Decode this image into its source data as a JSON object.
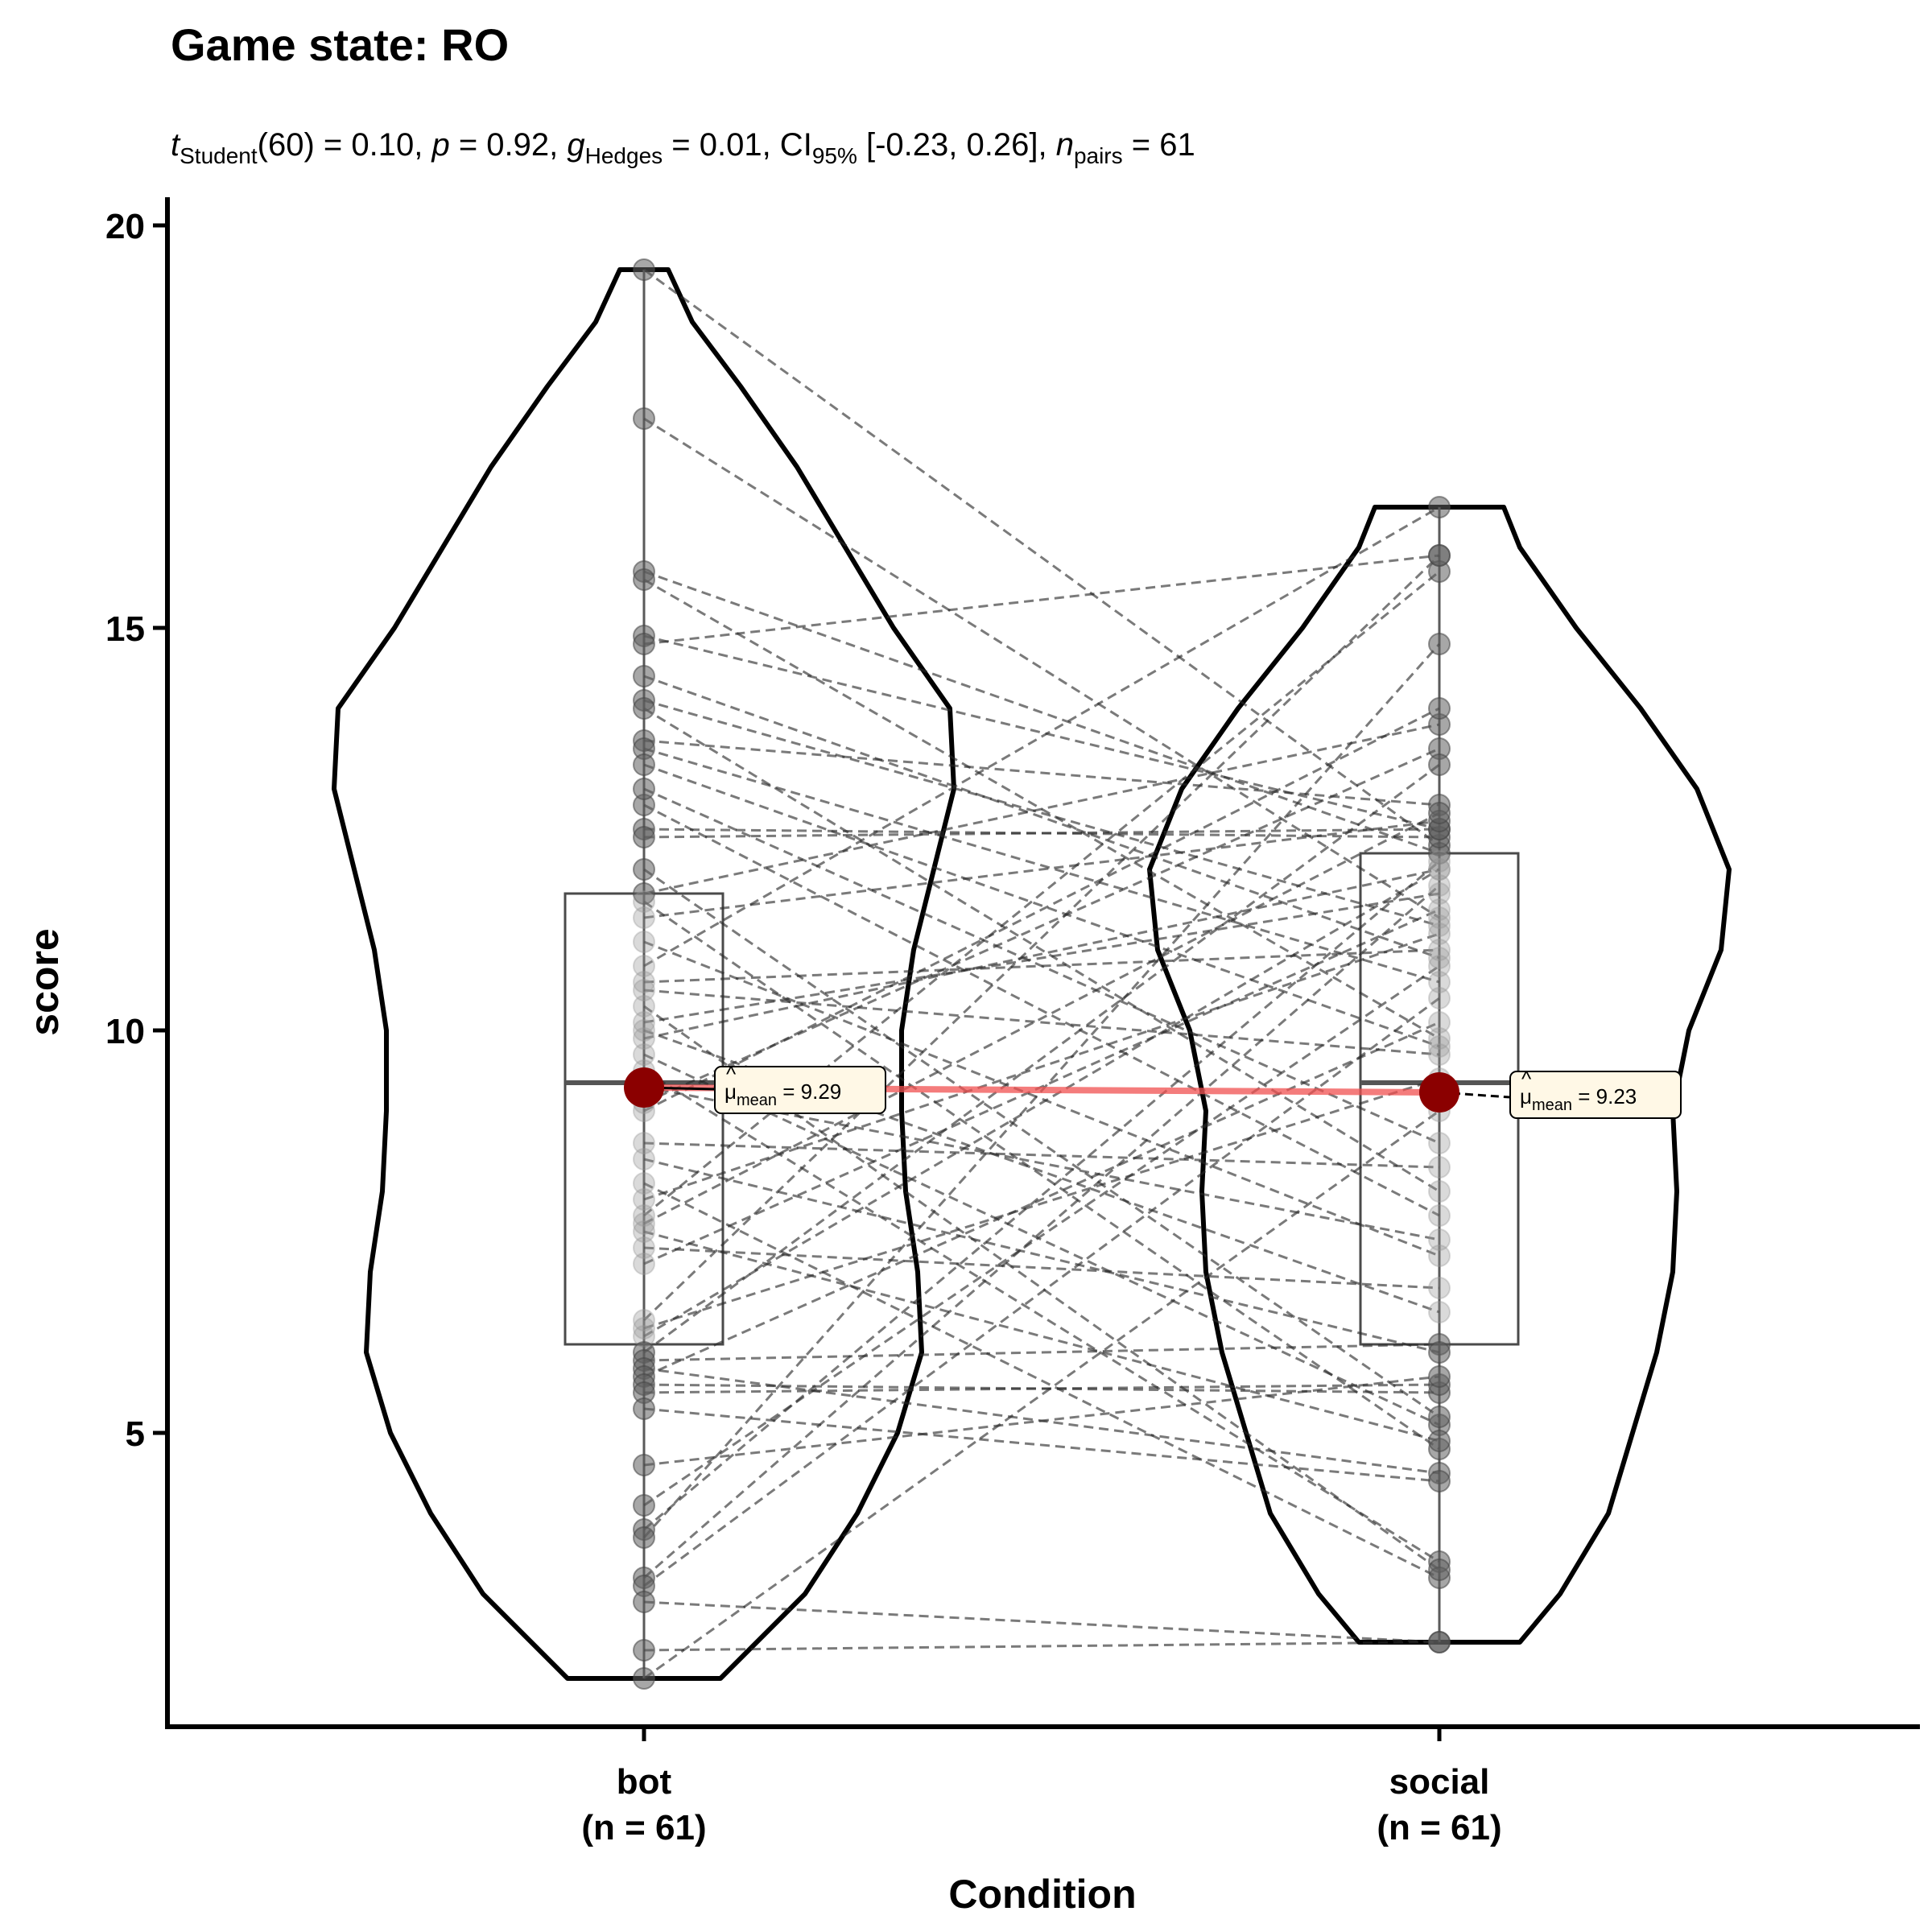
{
  "chart_data": {
    "type": "violin-paired",
    "title": "Game state: RO",
    "subtitle": {
      "t_sym": "t",
      "t_sub": "Student",
      "t_rest": "(60) = 0.10, ",
      "p_sym": "p",
      "p_rest": " = 0.92, ",
      "g_sym": "g",
      "g_hat": "^",
      "g_sub": "Hedges",
      "g_rest": " = 0.01, CI",
      "ci_sub": "95%",
      "ci_rest": " [-0.23, 0.26], ",
      "n_sym": "n",
      "n_sub": "pairs",
      "n_rest": " = 61"
    },
    "xlabel": "Condition",
    "ylabel": "score",
    "ylim": [
      1.35,
      20.35
    ],
    "yticks": [
      "5",
      "10",
      "15",
      "20"
    ],
    "categories": [
      {
        "name": "bot",
        "n_label": "(n = 61)"
      },
      {
        "name": "social",
        "n_label": "(n = 61)"
      }
    ],
    "means": [
      {
        "mu": "μ",
        "hat": "^",
        "sub": "mean",
        "text": " = 9.29",
        "value": 9.29
      },
      {
        "mu": "μ",
        "hat": "^",
        "sub": "mean",
        "text": " = 9.23",
        "value": 9.23
      }
    ],
    "boxes": [
      {
        "q1": 6.1,
        "median": 9.35,
        "q3": 11.7,
        "min": 1.95,
        "max": 19.45
      },
      {
        "q1": 6.1,
        "median": 9.35,
        "q3": 12.2,
        "min": 2.4,
        "max": 16.5
      }
    ],
    "violins": [
      {
        "profile": [
          [
            1.95,
            0.095
          ],
          [
            2.5,
            0.15
          ],
          [
            3.0,
            0.2
          ],
          [
            4.0,
            0.265
          ],
          [
            5.0,
            0.315
          ],
          [
            6.0,
            0.345
          ],
          [
            7.0,
            0.34
          ],
          [
            8.0,
            0.325
          ],
          [
            9.0,
            0.32
          ],
          [
            10.0,
            0.32
          ],
          [
            11.0,
            0.335
          ],
          [
            12.0,
            0.36
          ],
          [
            13.0,
            0.385
          ],
          [
            14.0,
            0.38
          ],
          [
            15.0,
            0.31
          ],
          [
            16.0,
            0.25
          ],
          [
            17.0,
            0.19
          ],
          [
            18.0,
            0.12
          ],
          [
            18.8,
            0.06
          ],
          [
            19.45,
            0.03
          ]
        ]
      },
      {
        "profile": [
          [
            2.4,
            0.1
          ],
          [
            3.0,
            0.15
          ],
          [
            4.0,
            0.21
          ],
          [
            5.0,
            0.24
          ],
          [
            6.0,
            0.27
          ],
          [
            7.0,
            0.29
          ],
          [
            8.0,
            0.295
          ],
          [
            9.0,
            0.29
          ],
          [
            10.0,
            0.31
          ],
          [
            11.0,
            0.35
          ],
          [
            12.0,
            0.36
          ],
          [
            13.0,
            0.32
          ],
          [
            14.0,
            0.25
          ],
          [
            15.0,
            0.17
          ],
          [
            16.0,
            0.1
          ],
          [
            16.5,
            0.08
          ]
        ]
      }
    ],
    "pairs": [
      [
        19.45,
        12.3
      ],
      [
        17.6,
        11.4
      ],
      [
        15.7,
        12.2
      ],
      [
        15.6,
        9.9
      ],
      [
        14.9,
        12.5
      ],
      [
        14.8,
        15.9
      ],
      [
        14.4,
        10.9
      ],
      [
        14.1,
        11.3
      ],
      [
        14.0,
        8.0
      ],
      [
        13.6,
        12.8
      ],
      [
        13.5,
        10.6
      ],
      [
        13.3,
        9.8
      ],
      [
        12.8,
        7.7
      ],
      [
        12.5,
        12.4
      ],
      [
        12.4,
        12.5
      ],
      [
        11.7,
        13.8
      ],
      [
        11.6,
        4.8
      ],
      [
        11.4,
        12.6
      ],
      [
        11.1,
        7.2
      ],
      [
        10.8,
        16.5
      ],
      [
        10.6,
        11.0
      ],
      [
        10.5,
        9.7
      ],
      [
        10.1,
        11.7
      ],
      [
        9.9,
        12.0
      ],
      [
        9.7,
        5.1
      ],
      [
        9.5,
        3.4
      ],
      [
        9.3,
        7.4
      ],
      [
        9.1,
        13.5
      ],
      [
        8.6,
        8.3
      ],
      [
        8.1,
        3.2
      ],
      [
        7.7,
        15.7
      ],
      [
        7.6,
        12.7
      ],
      [
        7.5,
        4.9
      ],
      [
        7.3,
        6.8
      ],
      [
        7.1,
        11.5
      ],
      [
        6.4,
        15.9
      ],
      [
        6.2,
        12.0
      ],
      [
        6.0,
        13.3
      ],
      [
        5.9,
        6.1
      ],
      [
        5.8,
        4.5
      ],
      [
        5.7,
        10.1
      ],
      [
        5.6,
        5.5
      ],
      [
        5.5,
        5.6
      ],
      [
        5.3,
        4.4
      ],
      [
        4.6,
        5.7
      ],
      [
        3.8,
        12.1
      ],
      [
        3.7,
        14.8
      ],
      [
        3.2,
        11.8
      ],
      [
        3.1,
        10.4
      ],
      [
        2.9,
        2.4
      ],
      [
        2.3,
        2.4
      ],
      [
        1.95,
        9.0
      ],
      [
        8.4,
        6.0
      ],
      [
        12.0,
        5.2
      ],
      [
        6.3,
        9.4
      ],
      [
        10.3,
        3.3
      ],
      [
        13.0,
        8.6
      ],
      [
        4.1,
        10.8
      ],
      [
        7.9,
        11.2
      ],
      [
        10.0,
        6.5
      ],
      [
        9.0,
        14.0
      ]
    ]
  }
}
